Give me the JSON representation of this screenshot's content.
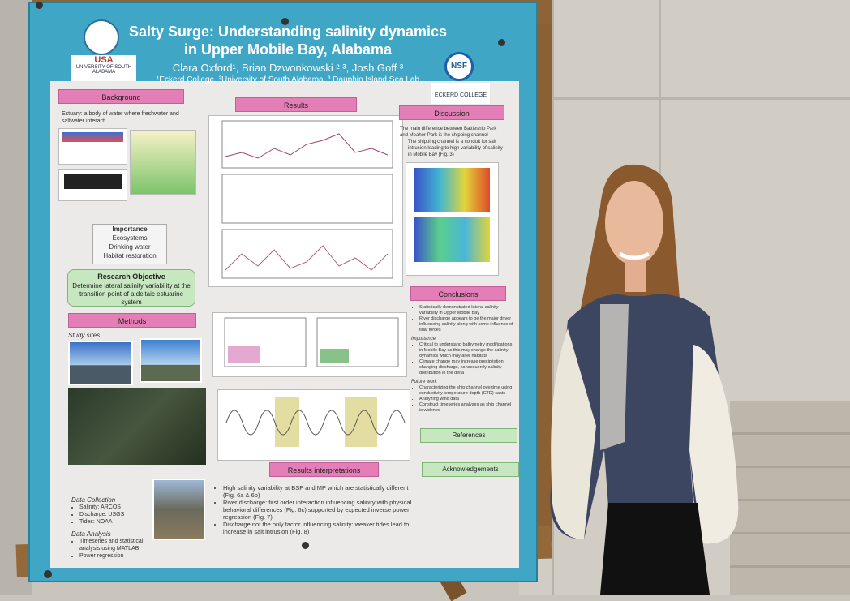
{
  "poster": {
    "title": "Salty Surge: Understanding salinity dynamics in Upper Mobile Bay, Alabama",
    "authors": "Clara Oxford¹, Brian Dzwonkowski ²,³, Josh Goff ³",
    "affiliations": "¹Eckerd College, ²University of South Alabama, ³ Dauphin Island Sea Lab",
    "logos": [
      "USA",
      "UNIVERSITY OF SOUTH ALABAMA",
      "NSF",
      "ECKERD COLLEGE"
    ],
    "background": {
      "heading": "Background",
      "text": "Estuary: a body of water where freshwater and saltwater interact",
      "importance_heading": "Importance",
      "importance": [
        "Ecosystems",
        "Drinking water",
        "Habitat restoration"
      ]
    },
    "objective": {
      "heading": "Research Objective",
      "text": "Determine lateral salinity variability at the transition point of a deltaic estuarine system"
    },
    "methods": {
      "heading": "Methods",
      "subheading": "Study sites",
      "data_collection_heading": "Data Collection",
      "data_collection": [
        "Salinity: ARCOS",
        "Discharge: USGS",
        "Tides: NOAA"
      ],
      "data_analysis_heading": "Data Analysis",
      "data_analysis": [
        "Timeseries and statistical analysis using MATLAB",
        "Power regression"
      ]
    },
    "results": {
      "heading": "Results"
    },
    "results_interpretations": {
      "heading": "Results interpretations",
      "items": [
        "High salinity variability at BSP and MP which are statistically different (Fig. 6a & 6b)",
        "River discharge: first order interaction influencing salinity with physical behavioral differences (Fig. 6c) supported by expected inverse power regression (Fig. 7)",
        "Discharge not the only factor influencing salinity: weaker tides lead to increase in salt intrusion (Fig. 8)"
      ]
    },
    "discussion": {
      "heading": "Discussion",
      "text": "The main difference between Battleship Park and Meaher Park is the shipping channel",
      "items": [
        "The shipping channel is a conduit for salt intrusion leading to high variability of salinity in Mobile Bay (Fig. 3)"
      ]
    },
    "conclusions": {
      "heading": "Conclusions",
      "items": [
        "Statistically demonstrated lateral salinity variability in Upper Mobile Bay",
        "River discharge appears to be the major driver influencing salinity along with some influence of tidal forces"
      ],
      "importance_heading": "Importance",
      "importance": [
        "Critical to understand bathymetry modifications in Mobile Bay as this may change the salinity dynamics which may alter habitats",
        "Climate change may increase precipitation changing discharge, consequently salinity distribution in the delta"
      ],
      "future_heading": "Future work",
      "future": [
        "Characterizing the ship channel overtime using conductivity temperature depth (CTD) casts",
        "Analyzing wind data",
        "Construct timeseries analyses as ship channel is widened"
      ]
    },
    "references": {
      "heading": "References"
    },
    "acknowledgements": {
      "heading": "Acknowledgements"
    }
  }
}
